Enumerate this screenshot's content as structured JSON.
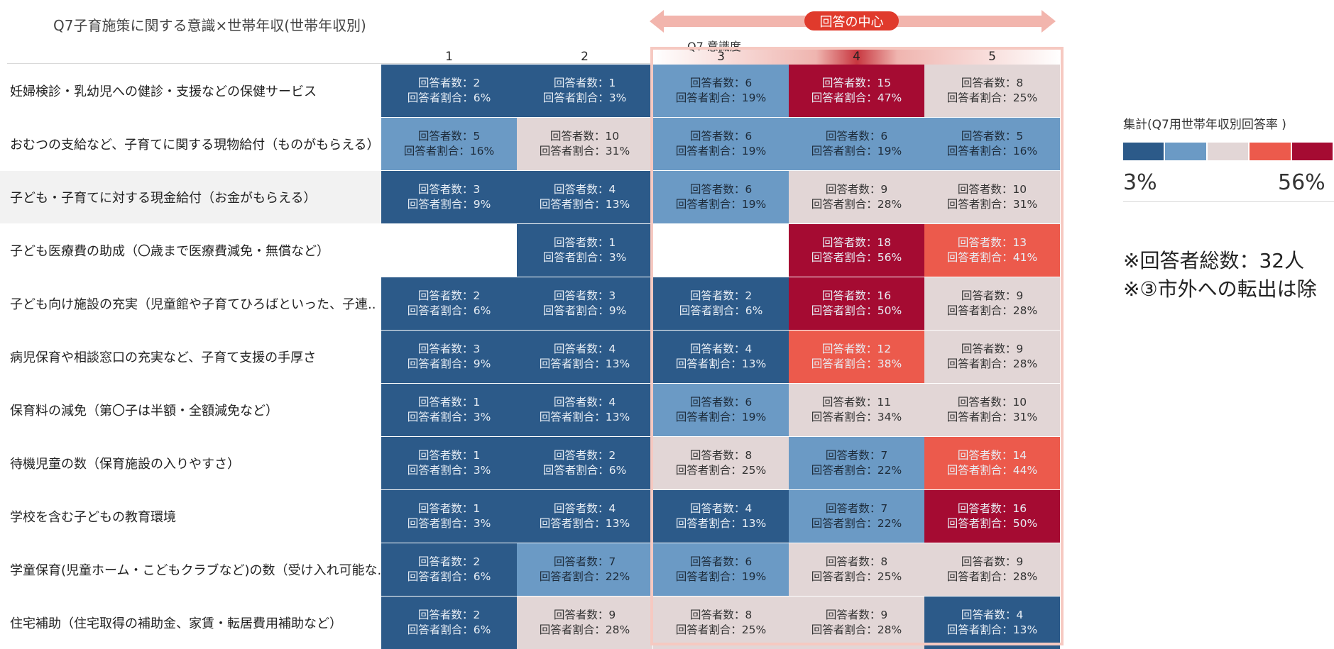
{
  "title": "Q7子育施策に関する意識×世帯年収(世帯年収別)",
  "axis_title": "Q7 意識度",
  "center_badge": "回答の中心",
  "legend": {
    "title": "集計(Q7用世帯年収別回答率 )",
    "min_label": "3%",
    "max_label": "56%",
    "colors": [
      "#2c5a89",
      "#6b9ac5",
      "#e2d6d6",
      "#ec5a4c",
      "#a50b32"
    ]
  },
  "notes": [
    "※回答者総数：32人",
    "※③市外への転出は除"
  ],
  "colors": {
    "dark_blue": "#2c5a89",
    "light_blue": "#6b9ac5",
    "neutral": "#e2d6d6",
    "coral": "#ec5a4c",
    "dark_red": "#a50b32",
    "highlight": "#f6c9c1"
  },
  "chart_data": {
    "type": "heatmap",
    "title": "Q7子育施策に関する意識×世帯年収(世帯年収別)",
    "xlabel": "Q7 意識度",
    "columns": [
      "1",
      "2",
      "3",
      "4",
      "5"
    ],
    "count_prefix": "回答者数：",
    "rate_prefix": "回答者割合：",
    "rows": [
      {
        "label": "妊婦検診・乳幼児への健診・支援などの保健サービス",
        "cells": [
          {
            "count": 2,
            "pct": 6,
            "color": "dark_blue"
          },
          {
            "count": 1,
            "pct": 3,
            "color": "dark_blue"
          },
          {
            "count": 6,
            "pct": 19,
            "color": "light_blue"
          },
          {
            "count": 15,
            "pct": 47,
            "color": "dark_red"
          },
          {
            "count": 8,
            "pct": 25,
            "color": "neutral"
          }
        ]
      },
      {
        "label": "おむつの支給など、子育てに関する現物給付（ものがもらえる）",
        "cells": [
          {
            "count": 5,
            "pct": 16,
            "color": "light_blue"
          },
          {
            "count": 10,
            "pct": 31,
            "color": "neutral"
          },
          {
            "count": 6,
            "pct": 19,
            "color": "light_blue"
          },
          {
            "count": 6,
            "pct": 19,
            "color": "light_blue"
          },
          {
            "count": 5,
            "pct": 16,
            "color": "light_blue"
          }
        ]
      },
      {
        "label": "子ども・子育てに対する現金給付（お金がもらえる）",
        "cells": [
          {
            "count": 3,
            "pct": 9,
            "color": "dark_blue"
          },
          {
            "count": 4,
            "pct": 13,
            "color": "dark_blue"
          },
          {
            "count": 6,
            "pct": 19,
            "color": "light_blue"
          },
          {
            "count": 9,
            "pct": 28,
            "color": "neutral"
          },
          {
            "count": 10,
            "pct": 31,
            "color": "neutral"
          }
        ]
      },
      {
        "label": "子ども医療費の助成（〇歳まで医療費減免・無償など）",
        "cells": [
          null,
          {
            "count": 1,
            "pct": 3,
            "color": "dark_blue"
          },
          null,
          {
            "count": 18,
            "pct": 56,
            "color": "dark_red"
          },
          {
            "count": 13,
            "pct": 41,
            "color": "coral"
          }
        ]
      },
      {
        "label": "子ども向け施設の充実（児童館や子育てひろばといった、子連..",
        "cells": [
          {
            "count": 2,
            "pct": 6,
            "color": "dark_blue"
          },
          {
            "count": 3,
            "pct": 9,
            "color": "dark_blue"
          },
          {
            "count": 2,
            "pct": 6,
            "color": "dark_blue"
          },
          {
            "count": 16,
            "pct": 50,
            "color": "dark_red"
          },
          {
            "count": 9,
            "pct": 28,
            "color": "neutral"
          }
        ]
      },
      {
        "label": "病児保育や相談窓口の充実など、子育て支援の手厚さ",
        "cells": [
          {
            "count": 3,
            "pct": 9,
            "color": "dark_blue"
          },
          {
            "count": 4,
            "pct": 13,
            "color": "dark_blue"
          },
          {
            "count": 4,
            "pct": 13,
            "color": "dark_blue"
          },
          {
            "count": 12,
            "pct": 38,
            "color": "coral"
          },
          {
            "count": 9,
            "pct": 28,
            "color": "neutral"
          }
        ]
      },
      {
        "label": "保育料の減免（第〇子は半額・全額減免など）",
        "cells": [
          {
            "count": 1,
            "pct": 3,
            "color": "dark_blue"
          },
          {
            "count": 4,
            "pct": 13,
            "color": "dark_blue"
          },
          {
            "count": 6,
            "pct": 19,
            "color": "light_blue"
          },
          {
            "count": 11,
            "pct": 34,
            "color": "neutral"
          },
          {
            "count": 10,
            "pct": 31,
            "color": "neutral"
          }
        ]
      },
      {
        "label": "待機児童の数（保育施設の入りやすさ）",
        "cells": [
          {
            "count": 1,
            "pct": 3,
            "color": "dark_blue"
          },
          {
            "count": 2,
            "pct": 6,
            "color": "dark_blue"
          },
          {
            "count": 8,
            "pct": 25,
            "color": "neutral"
          },
          {
            "count": 7,
            "pct": 22,
            "color": "light_blue"
          },
          {
            "count": 14,
            "pct": 44,
            "color": "coral"
          }
        ]
      },
      {
        "label": "学校を含む子どもの教育環境",
        "cells": [
          {
            "count": 1,
            "pct": 3,
            "color": "dark_blue"
          },
          {
            "count": 4,
            "pct": 13,
            "color": "dark_blue"
          },
          {
            "count": 4,
            "pct": 13,
            "color": "dark_blue"
          },
          {
            "count": 7,
            "pct": 22,
            "color": "light_blue"
          },
          {
            "count": 16,
            "pct": 50,
            "color": "dark_red"
          }
        ]
      },
      {
        "label": "学童保育(児童ホーム・こどもクラブなど)の数（受け入れ可能な..",
        "cells": [
          {
            "count": 2,
            "pct": 6,
            "color": "dark_blue"
          },
          {
            "count": 7,
            "pct": 22,
            "color": "light_blue"
          },
          {
            "count": 6,
            "pct": 19,
            "color": "light_blue"
          },
          {
            "count": 8,
            "pct": 25,
            "color": "neutral"
          },
          {
            "count": 9,
            "pct": 28,
            "color": "neutral"
          }
        ]
      },
      {
        "label": "住宅補助（住宅取得の補助金、家賃・転居費用補助など）",
        "cells": [
          {
            "count": 2,
            "pct": 6,
            "color": "dark_blue"
          },
          {
            "count": 9,
            "pct": 28,
            "color": "neutral"
          },
          {
            "count": 8,
            "pct": 25,
            "color": "neutral"
          },
          {
            "count": 9,
            "pct": 28,
            "color": "neutral"
          },
          {
            "count": 4,
            "pct": 13,
            "color": "dark_blue"
          }
        ]
      }
    ]
  }
}
